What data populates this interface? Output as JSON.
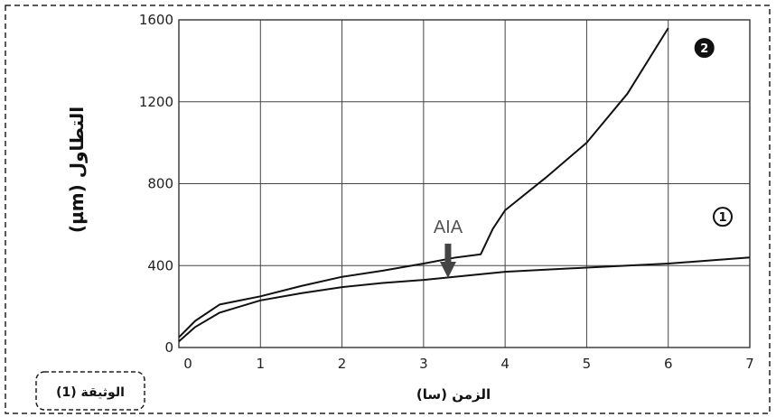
{
  "caption": "الوثيقة (1)",
  "chart_data": {
    "type": "line",
    "title": "",
    "xlabel": "الزمن (سا)",
    "ylabel": "التطاول (µm)",
    "xlim": [
      0,
      7
    ],
    "ylim": [
      0,
      1600
    ],
    "x_ticks": [
      0,
      1,
      2,
      3,
      4,
      5,
      6,
      7
    ],
    "y_ticks": [
      0,
      400,
      800,
      1200,
      1600
    ],
    "grid": true,
    "series": [
      {
        "name": "1",
        "x": [
          0,
          0.2,
          0.5,
          1,
          1.5,
          2,
          2.5,
          3,
          3.5,
          4,
          4.5,
          5,
          5.5,
          6,
          6.5,
          7
        ],
        "y": [
          30,
          100,
          170,
          230,
          265,
          295,
          315,
          330,
          350,
          370,
          380,
          390,
          400,
          410,
          425,
          440
        ]
      },
      {
        "name": "2",
        "x": [
          0,
          0.2,
          0.5,
          1,
          1.5,
          2,
          2.5,
          3,
          3.4,
          3.7,
          3.85,
          4,
          4.5,
          5,
          5.5,
          6
        ],
        "y": [
          50,
          130,
          210,
          250,
          300,
          345,
          375,
          410,
          440,
          455,
          580,
          670,
          830,
          1000,
          1240,
          1560
        ]
      }
    ],
    "annotations": [
      {
        "text": "AIA",
        "x": 3.3,
        "y": 560
      }
    ]
  }
}
